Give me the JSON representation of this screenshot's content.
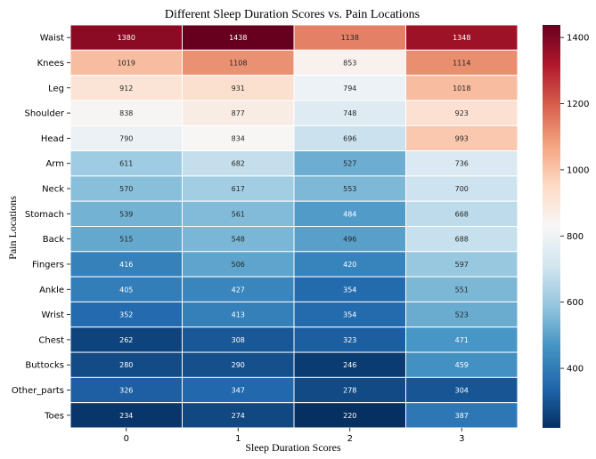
{
  "chart_data": {
    "type": "heatmap",
    "title": "Different Sleep Duration Scores vs. Pain Locations",
    "xlabel": "Sleep Duration Scores",
    "ylabel": "Pain Locations",
    "x_categories": [
      "0",
      "1",
      "2",
      "3"
    ],
    "y_categories": [
      "Waist",
      "Knees",
      "Leg",
      "Shoulder",
      "Head",
      "Arm",
      "Neck",
      "Stomach",
      "Back",
      "Fingers",
      "Ankle",
      "Wrist",
      "Chest",
      "Buttocks",
      "Other_parts",
      "Toes"
    ],
    "values": [
      [
        1380,
        1438,
        1138,
        1348
      ],
      [
        1019,
        1108,
        853,
        1114
      ],
      [
        912,
        931,
        794,
        1018
      ],
      [
        838,
        877,
        748,
        923
      ],
      [
        790,
        834,
        696,
        993
      ],
      [
        611,
        682,
        527,
        736
      ],
      [
        570,
        617,
        553,
        700
      ],
      [
        539,
        561,
        484,
        668
      ],
      [
        515,
        548,
        496,
        688
      ],
      [
        416,
        506,
        420,
        597
      ],
      [
        405,
        427,
        354,
        551
      ],
      [
        352,
        413,
        354,
        523
      ],
      [
        262,
        308,
        323,
        471
      ],
      [
        280,
        290,
        246,
        459
      ],
      [
        326,
        347,
        278,
        304
      ],
      [
        234,
        274,
        220,
        387
      ]
    ],
    "colormap": "RdBu_r",
    "vmin": 220,
    "vmax": 1438,
    "colorbar_ticks": [
      400,
      600,
      800,
      1000,
      1200,
      1400
    ],
    "annotations": true
  }
}
